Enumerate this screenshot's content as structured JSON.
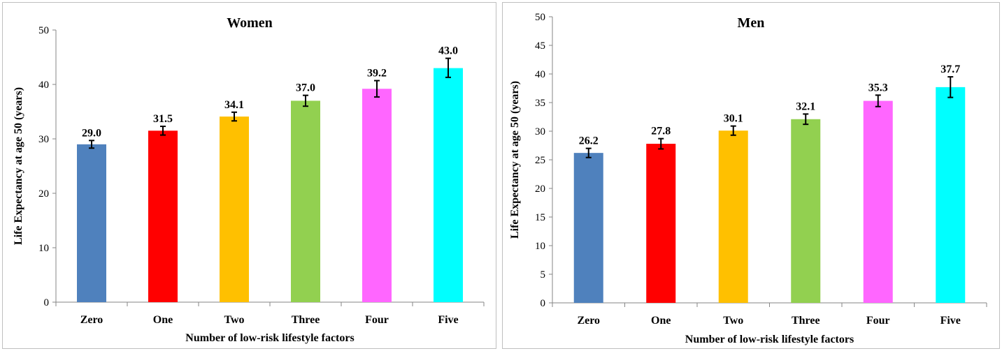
{
  "colors": [
    "#4f81bd",
    "#ff0000",
    "#ffc000",
    "#92d050",
    "#ff66ff",
    "#00ffff"
  ],
  "chart_data": [
    {
      "type": "bar",
      "title": "Women",
      "xlabel": "Number  of low-risk lifestyle factors",
      "ylabel": "Life Expectancy at age 50 (years)",
      "ylim": [
        0,
        50
      ],
      "ytick_step": 10,
      "categories": [
        "Zero",
        "One",
        "Two",
        "Three",
        "Four",
        "Five"
      ],
      "values": [
        29.0,
        31.5,
        34.1,
        37.0,
        39.2,
        43.0
      ],
      "data_labels": [
        "29.0",
        "31.5",
        "34.1",
        "37.0",
        "39.2",
        "43.0"
      ],
      "error_low": [
        28.3,
        30.7,
        33.3,
        36.0,
        37.7,
        41.3
      ],
      "error_high": [
        29.7,
        32.3,
        34.9,
        38.0,
        40.7,
        44.8
      ],
      "grid": false,
      "legend": "none"
    },
    {
      "type": "bar",
      "title": "Men",
      "xlabel": "Number  of low-risk lifestyle factors",
      "ylabel": "Life Expectancy at age 50 (years)",
      "ylim": [
        0,
        50
      ],
      "ytick_step": 5,
      "categories": [
        "Zero",
        "One",
        "Two",
        "Three",
        "Four",
        "Five"
      ],
      "values": [
        26.2,
        27.8,
        30.1,
        32.1,
        35.3,
        37.7
      ],
      "data_labels": [
        "26.2",
        "27.8",
        "30.1",
        "32.1",
        "35.3",
        "37.7"
      ],
      "error_low": [
        25.4,
        26.9,
        29.3,
        31.2,
        34.3,
        35.9
      ],
      "error_high": [
        27.0,
        28.7,
        30.9,
        33.0,
        36.3,
        39.5
      ],
      "grid": false,
      "legend": "none"
    }
  ]
}
